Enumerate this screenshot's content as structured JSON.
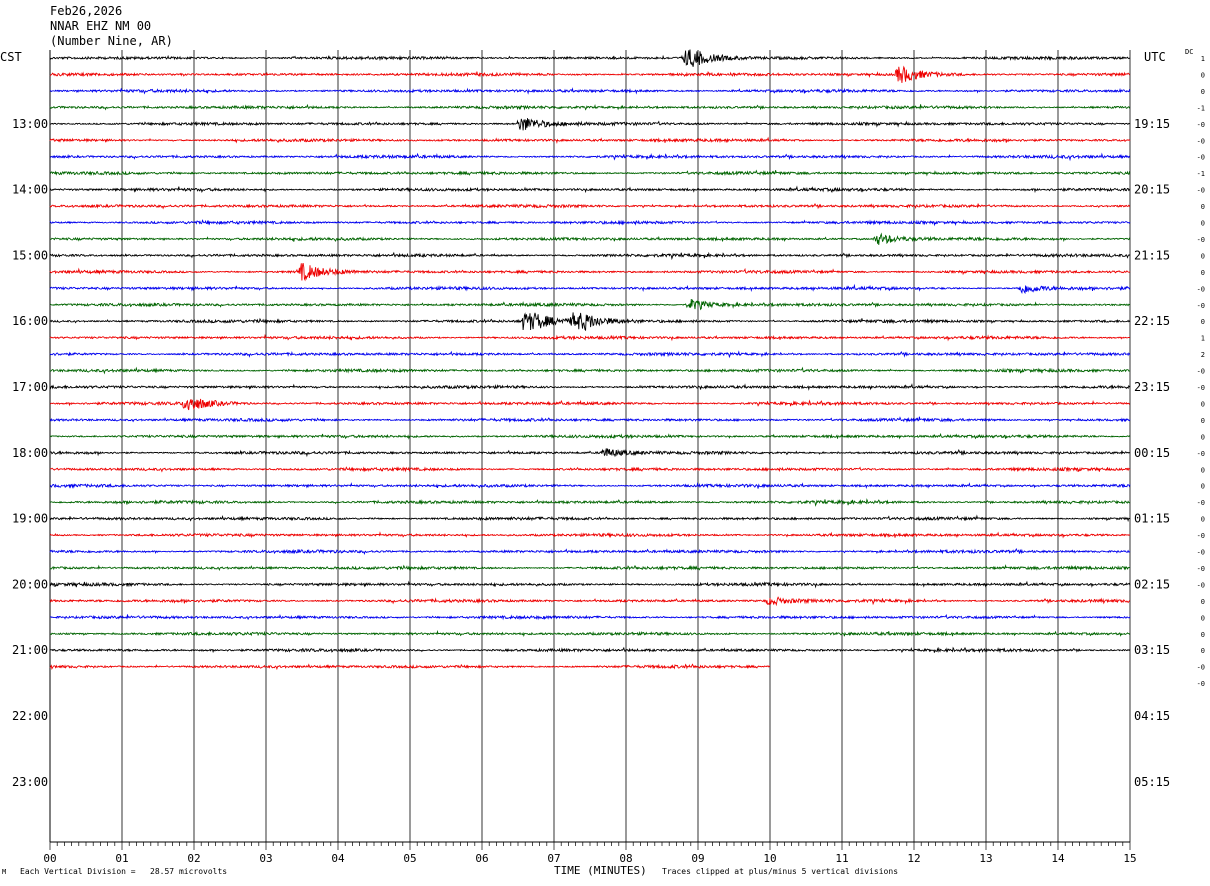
{
  "header": {
    "date": "Feb26,2026",
    "station": "NNAR EHZ NM 00",
    "location": "(Number Nine, AR)"
  },
  "left_zone_label": "CST",
  "right_zone_label": "UTC",
  "dc_label": "DC",
  "footer": {
    "division_note": "Each Vertical Division =   28.57 microvolts",
    "xlabel": "TIME (MINUTES)",
    "clip_note": "Traces clipped at plus/minus 5 vertical divisions",
    "corner_mark": "M"
  },
  "colors": {
    "trace_cycle": [
      "#000000",
      "#ee0000",
      "#0000ee",
      "#006400"
    ],
    "grid": "#000000"
  },
  "chart_data": {
    "type": "line",
    "subtype": "seismic helicorder",
    "xlabel": "TIME (MINUTES)",
    "xlim": [
      0,
      15
    ],
    "x_ticks": [
      "00",
      "01",
      "02",
      "03",
      "04",
      "05",
      "06",
      "07",
      "08",
      "09",
      "10",
      "11",
      "12",
      "13",
      "14",
      "15"
    ],
    "left_hour_labels": [
      "13:00",
      "14:00",
      "15:00",
      "16:00",
      "17:00",
      "18:00",
      "19:00",
      "20:00",
      "21:00",
      "22:00",
      "23:00"
    ],
    "right_hour_labels": [
      "19:15",
      "20:15",
      "21:15",
      "22:15",
      "23:15",
      "00:15",
      "01:15",
      "02:15",
      "03:15",
      "04:15",
      "05:15"
    ],
    "row_minutes": 15,
    "rows_drawn": 38,
    "last_row_end_minute": 10,
    "dc_offsets": [
      "1",
      "0",
      "0",
      "-1",
      "-0",
      "-0",
      "-0",
      "-1",
      "-0",
      "0",
      "0",
      "-0",
      "0",
      "0",
      "-0",
      "-0",
      "0",
      "1",
      "2",
      "-0",
      "-0",
      "0",
      "0",
      "0",
      "-0",
      "0",
      "0",
      "-0",
      "0",
      "-0",
      "-0",
      "-0",
      "-0",
      "0",
      "0",
      "0",
      "0",
      "-0",
      "-0"
    ],
    "events": [
      {
        "row": 0,
        "minute": 8.85,
        "amp": 4.0
      },
      {
        "row": 1,
        "minute": 11.8,
        "amp": 3.0
      },
      {
        "row": 4,
        "minute": 6.55,
        "amp": 2.6
      },
      {
        "row": 11,
        "minute": 11.5,
        "amp": 1.9
      },
      {
        "row": 13,
        "minute": 3.5,
        "amp": 3.0
      },
      {
        "row": 14,
        "minute": 13.5,
        "amp": 1.8
      },
      {
        "row": 15,
        "minute": 8.9,
        "amp": 1.9
      },
      {
        "row": 16,
        "minute": 6.6,
        "amp": 4.8
      },
      {
        "row": 16,
        "minute": 7.3,
        "amp": 4.5
      },
      {
        "row": 21,
        "minute": 1.9,
        "amp": 2.9
      },
      {
        "row": 24,
        "minute": 7.7,
        "amp": 1.5
      },
      {
        "row": 33,
        "minute": 10.0,
        "amp": 1.4
      }
    ]
  }
}
